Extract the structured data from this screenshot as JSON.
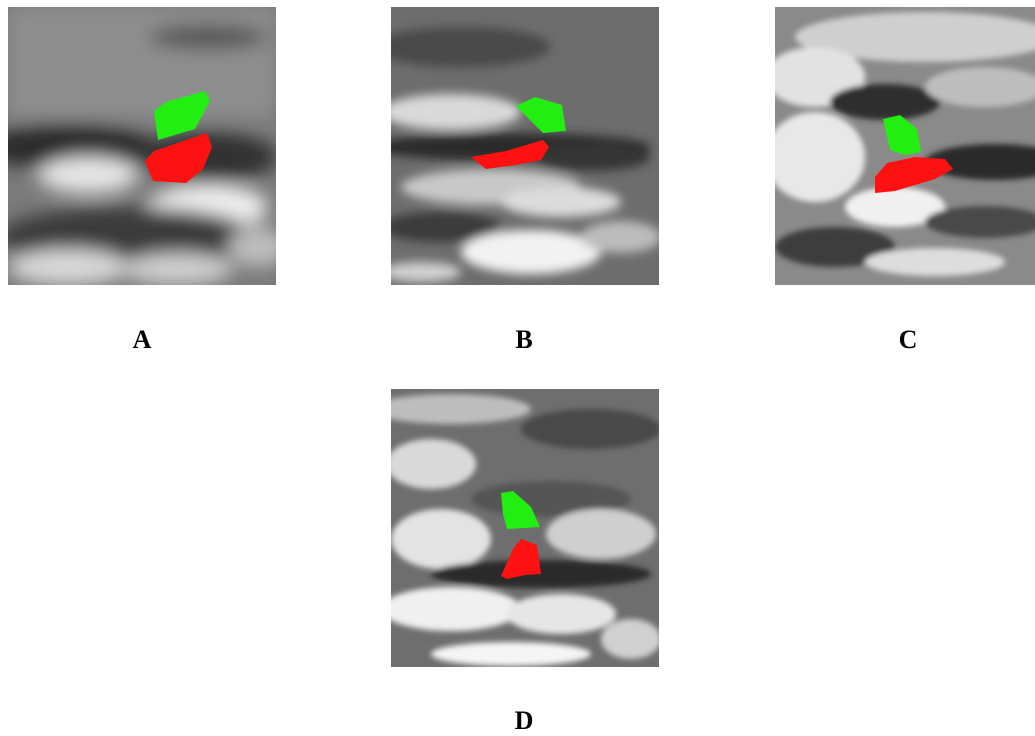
{
  "panels": [
    {
      "id": "a",
      "label": "A",
      "image": "grayscale-satellite-cloud-image",
      "regions": [
        "green-region",
        "red-region"
      ]
    },
    {
      "id": "b",
      "label": "B",
      "image": "grayscale-satellite-cloud-image",
      "regions": [
        "green-region",
        "red-region"
      ]
    },
    {
      "id": "c",
      "label": "C",
      "image": "grayscale-satellite-cloud-image",
      "regions": [
        "green-region",
        "red-region"
      ]
    },
    {
      "id": "d",
      "label": "D",
      "image": "grayscale-satellite-cloud-image",
      "regions": [
        "green-region",
        "red-region"
      ]
    }
  ],
  "colors": {
    "green_region": "#22ee11",
    "red_region": "#ff1111",
    "background": "#ffffff"
  }
}
